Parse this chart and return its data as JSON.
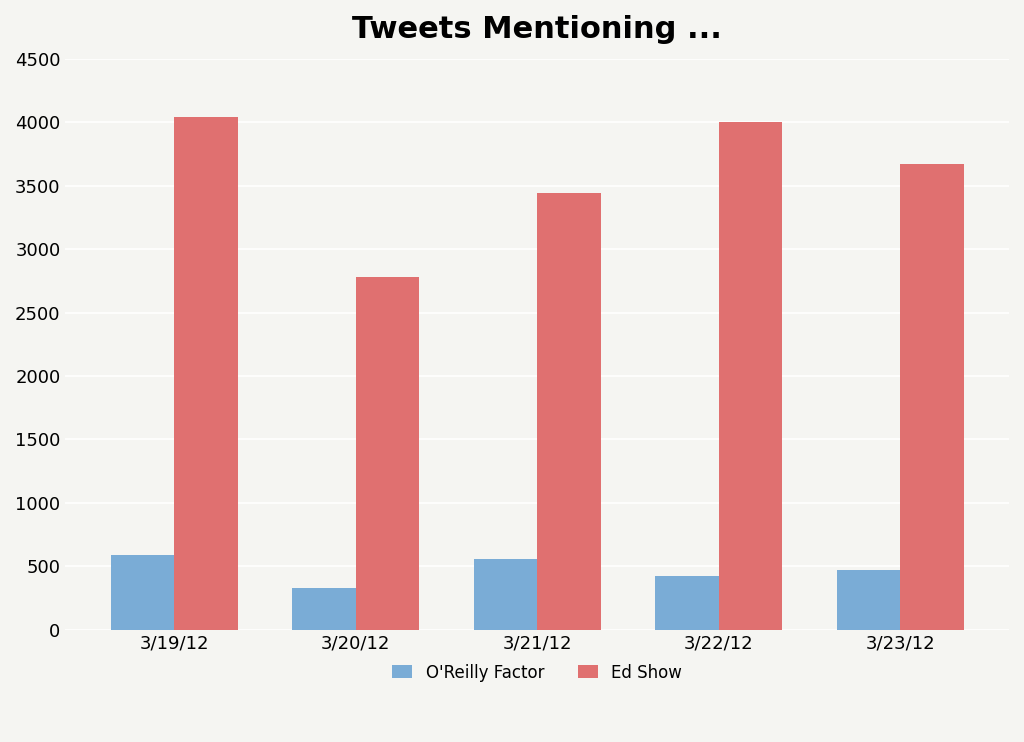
{
  "title": "Tweets Mentioning ...",
  "categories": [
    "3/19/12",
    "3/20/12",
    "3/21/12",
    "3/22/12",
    "3/23/12"
  ],
  "oreilly_values": [
    590,
    330,
    560,
    420,
    470
  ],
  "edshow_values": [
    4040,
    2780,
    3440,
    4000,
    3670
  ],
  "oreilly_color": "#7aacd6",
  "edshow_color": "#e07070",
  "oreilly_label": "O'Reilly Factor",
  "edshow_label": "Ed Show",
  "ylim": [
    0,
    4500
  ],
  "yticks": [
    0,
    500,
    1000,
    1500,
    2000,
    2500,
    3000,
    3500,
    4000,
    4500
  ],
  "background_color": "#f5f5f2",
  "title_fontsize": 22,
  "bar_width": 0.35,
  "grid_color": "#ffffff",
  "legend_fontsize": 12,
  "tick_fontsize": 13
}
